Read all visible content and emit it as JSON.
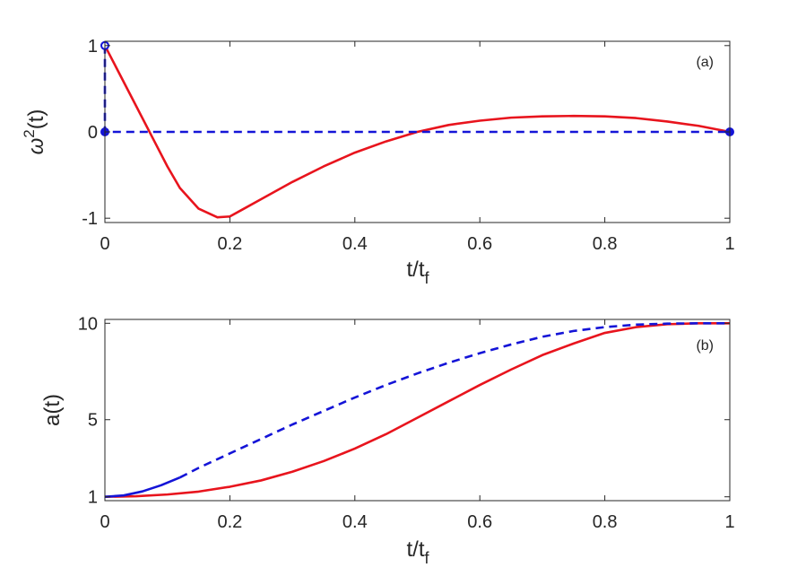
{
  "chart_data": [
    {
      "type": "line",
      "panel_label": "(a)",
      "xlabel": "t/t_f",
      "ylabel": "ω^2(t)",
      "xlim": [
        0,
        1
      ],
      "ylim": [
        -1.05,
        1.05
      ],
      "xticks": [
        0,
        0.2,
        0.4,
        0.6,
        0.8,
        1
      ],
      "xtick_labels": [
        "0",
        "0.2",
        "0.4",
        "0.6",
        "0.8",
        "1"
      ],
      "yticks": [
        -1,
        0,
        1
      ],
      "ytick_labels": [
        "-1",
        "0",
        "1"
      ],
      "grid": false,
      "series": [
        {
          "color": "#e8141d",
          "style": "solid",
          "x": [
            0,
            0.02,
            0.05,
            0.08,
            0.1,
            0.12,
            0.15,
            0.18,
            0.2,
            0.22,
            0.25,
            0.3,
            0.35,
            0.4,
            0.45,
            0.5,
            0.55,
            0.6,
            0.65,
            0.7,
            0.75,
            0.8,
            0.85,
            0.9,
            0.95,
            1
          ],
          "y": [
            1,
            0.72,
            0.3,
            -0.12,
            -0.4,
            -0.65,
            -0.89,
            -0.99,
            -0.98,
            -0.9,
            -0.78,
            -0.58,
            -0.4,
            -0.24,
            -0.11,
            0,
            0.08,
            0.13,
            0.165,
            0.18,
            0.185,
            0.18,
            0.16,
            0.12,
            0.07,
            0
          ]
        },
        {
          "color": "#1414d7",
          "style": "dashed",
          "x": [
            0,
            0,
            0,
            1
          ],
          "y": [
            1,
            0,
            0,
            0
          ]
        }
      ],
      "markers": [
        {
          "x": 0,
          "y": 1,
          "fill": false
        },
        {
          "x": 0,
          "y": 0,
          "fill": true
        },
        {
          "x": 1,
          "y": 0,
          "fill": true
        }
      ]
    },
    {
      "type": "line",
      "panel_label": "(b)",
      "xlabel": "t/t_f",
      "ylabel": "a(t)",
      "xlim": [
        0,
        1
      ],
      "ylim": [
        0.8,
        10.2
      ],
      "xticks": [
        0,
        0.2,
        0.4,
        0.6,
        0.8,
        1
      ],
      "xtick_labels": [
        "0",
        "0.2",
        "0.4",
        "0.6",
        "0.8",
        "1"
      ],
      "yticks": [
        1,
        5,
        10
      ],
      "ytick_labels": [
        "1",
        "5",
        "10"
      ],
      "grid": false,
      "series": [
        {
          "color": "#e8141d",
          "style": "solid",
          "x": [
            0,
            0.05,
            0.1,
            0.15,
            0.2,
            0.25,
            0.3,
            0.35,
            0.4,
            0.45,
            0.5,
            0.55,
            0.6,
            0.65,
            0.7,
            0.75,
            0.8,
            0.85,
            0.9,
            0.95,
            1
          ],
          "y": [
            1,
            1.03,
            1.12,
            1.27,
            1.52,
            1.85,
            2.3,
            2.85,
            3.5,
            4.25,
            5.1,
            5.95,
            6.8,
            7.6,
            8.35,
            8.95,
            9.5,
            9.8,
            9.95,
            10,
            10
          ]
        },
        {
          "color": "#1414d7",
          "style": "solid",
          "x": [
            0,
            0.03,
            0.06,
            0.09,
            0.12
          ],
          "y": [
            1,
            1.07,
            1.28,
            1.6,
            2.0
          ]
        },
        {
          "color": "#1414d7",
          "style": "dashed",
          "x": [
            0.12,
            0.15,
            0.2,
            0.25,
            0.3,
            0.35,
            0.4,
            0.45,
            0.5,
            0.55,
            0.6,
            0.65,
            0.7,
            0.75,
            0.8,
            0.85,
            0.9,
            0.95,
            1
          ],
          "y": [
            2.0,
            2.5,
            3.25,
            4.0,
            4.75,
            5.45,
            6.15,
            6.8,
            7.4,
            7.95,
            8.45,
            8.9,
            9.3,
            9.6,
            9.8,
            9.93,
            9.98,
            10,
            10
          ]
        }
      ]
    }
  ]
}
